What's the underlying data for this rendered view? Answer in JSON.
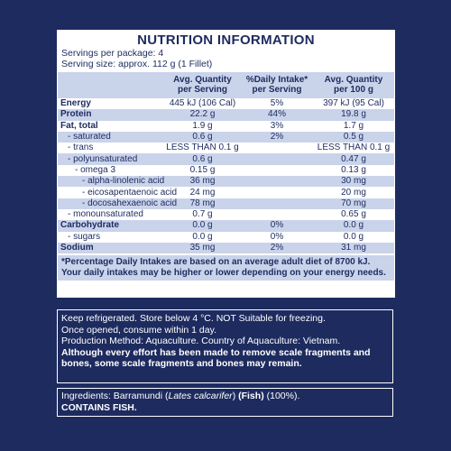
{
  "nutrition": {
    "title": "NUTRITION INFORMATION",
    "servings_per_package": "Servings per package: 4",
    "serving_size": "Serving size: approx. 112 g (1 Fillet)",
    "headers": [
      "Avg. Quantity\nper Serving",
      "%Daily Intake*\nper Serving",
      "Avg. Quantity\nper 100 g"
    ],
    "rows": [
      {
        "name": "Energy",
        "serving": "445 kJ (106 Cal)",
        "di": "5%",
        "per100": "397 kJ (95 Cal)"
      },
      {
        "name": "Protein",
        "serving": "22.2 g",
        "di": "44%",
        "per100": "19.8 g"
      },
      {
        "name": "Fat, total",
        "serving": "1.9 g",
        "di": "3%",
        "per100": "1.7 g"
      },
      {
        "name": "- saturated",
        "serving": "0.6 g",
        "di": "2%",
        "per100": "0.5 g"
      },
      {
        "name": "- trans",
        "serving": "LESS THAN 0.1 g",
        "per100": "LESS THAN 0.1 g"
      },
      {
        "name": "- polyunsaturated",
        "serving": "0.6 g",
        "per100": "0.47 g"
      },
      {
        "name": "- omega 3",
        "serving": "0.15 g",
        "per100": "0.13 g"
      },
      {
        "name": "- alpha-linolenic acid",
        "serving": "36 mg",
        "per100": "30 mg"
      },
      {
        "name": "- eicosapentaenoic acid",
        "serving": "24 mg",
        "per100": "20 mg"
      },
      {
        "name": "- docosahexaenoic acid",
        "serving": "78 mg",
        "per100": "70 mg"
      },
      {
        "name": "- monounsaturated",
        "serving": "0.7 g",
        "per100": "0.65 g"
      },
      {
        "name": "Carbohydrate",
        "serving": "0.0 g",
        "di": "0%",
        "per100": "0.0 g"
      },
      {
        "name": "- sugars",
        "serving": "0.0 g",
        "di": "0%",
        "per100": "0.0 g"
      },
      {
        "name": "Sodium",
        "serving": "35 mg",
        "di": "2%",
        "per100": "31 mg"
      }
    ],
    "footnote": "*Percentage Daily Intakes are based on an average adult diet of 8700 kJ. Your daily intakes may be higher or lower depending on your energy needs."
  },
  "storage": {
    "lines": [
      "Keep refrigerated. Store below 4 °C. NOT Suitable for freezing.",
      "Once opened, consume within 1 day.",
      "Production Method: Aquaculture. Country of Aquaculture: Vietnam."
    ],
    "warning": "Although every effort has been made to remove scale fragments and bones, some scale fragments and bones may remain."
  },
  "ingredients": {
    "prefix": "Ingredients: Barramundi (",
    "species": "Lates calcarifer",
    "middle": ") ",
    "allergen": "(Fish)",
    "suffix": " (100%).",
    "contains": "CONTAINS FISH."
  }
}
